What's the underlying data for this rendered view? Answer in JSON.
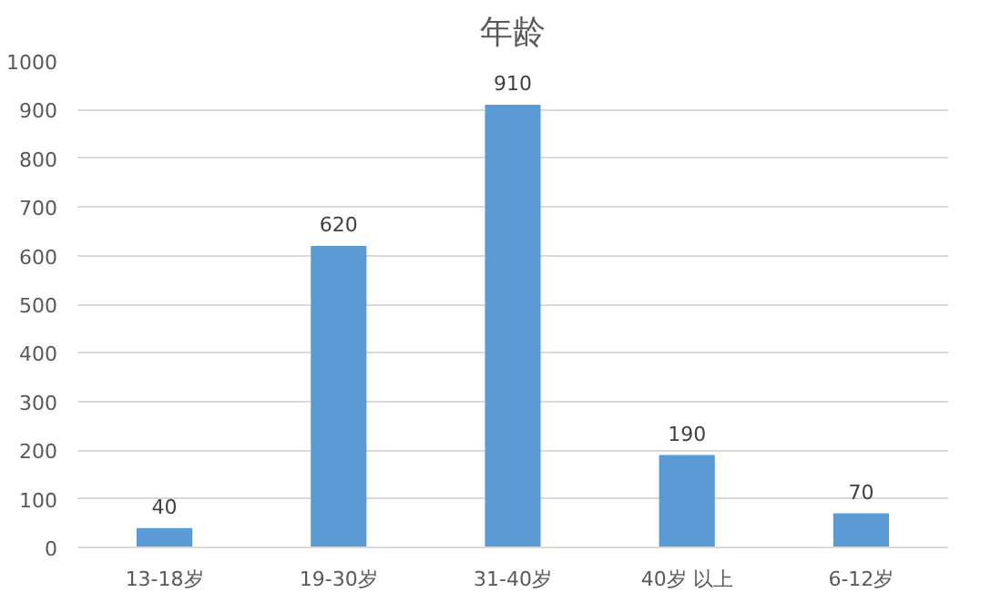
{
  "chart_data": {
    "type": "bar",
    "title": "年龄",
    "categories": [
      "13-18岁",
      "19-30岁",
      "31-40岁",
      "40岁 以上",
      "6-12岁"
    ],
    "values": [
      40,
      620,
      910,
      190,
      70
    ],
    "color": "#5b9bd5",
    "ylim": [
      0,
      1000
    ],
    "yticks": [
      0,
      100,
      200,
      300,
      400,
      500,
      600,
      700,
      800,
      900,
      1000
    ],
    "grid": "y",
    "data_labels": true
  }
}
